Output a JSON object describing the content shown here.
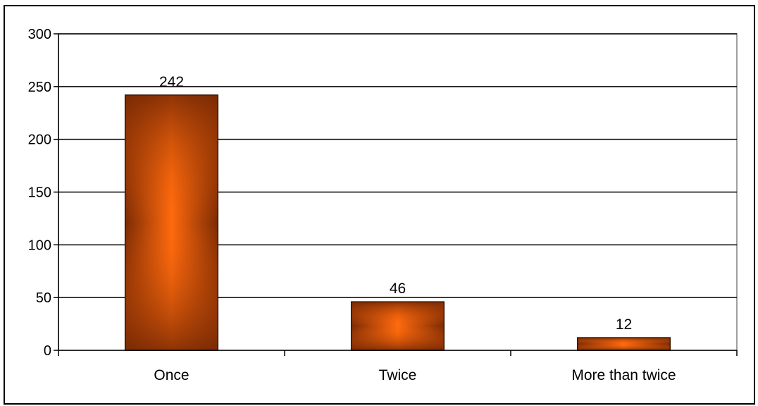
{
  "chart_data": {
    "type": "bar",
    "title": "",
    "xlabel": "",
    "ylabel": "",
    "categories": [
      "Once",
      "Twice",
      "More than twice"
    ],
    "values": [
      242,
      46,
      12
    ],
    "data_labels": [
      "242",
      "46",
      "12"
    ],
    "ylim": [
      0,
      300
    ],
    "yticks": [
      0,
      50,
      100,
      150,
      200,
      250,
      300
    ],
    "ytick_labels": [
      "0",
      "50",
      "100",
      "150",
      "200",
      "250",
      "300"
    ],
    "grid": true,
    "legend": "none",
    "colors": {
      "bar_edge": "#3a1400",
      "bar_dark": "#7a2a04",
      "bar_light": "#ff6a0d",
      "gridline": "#000000",
      "plot_border": "#808080"
    }
  }
}
